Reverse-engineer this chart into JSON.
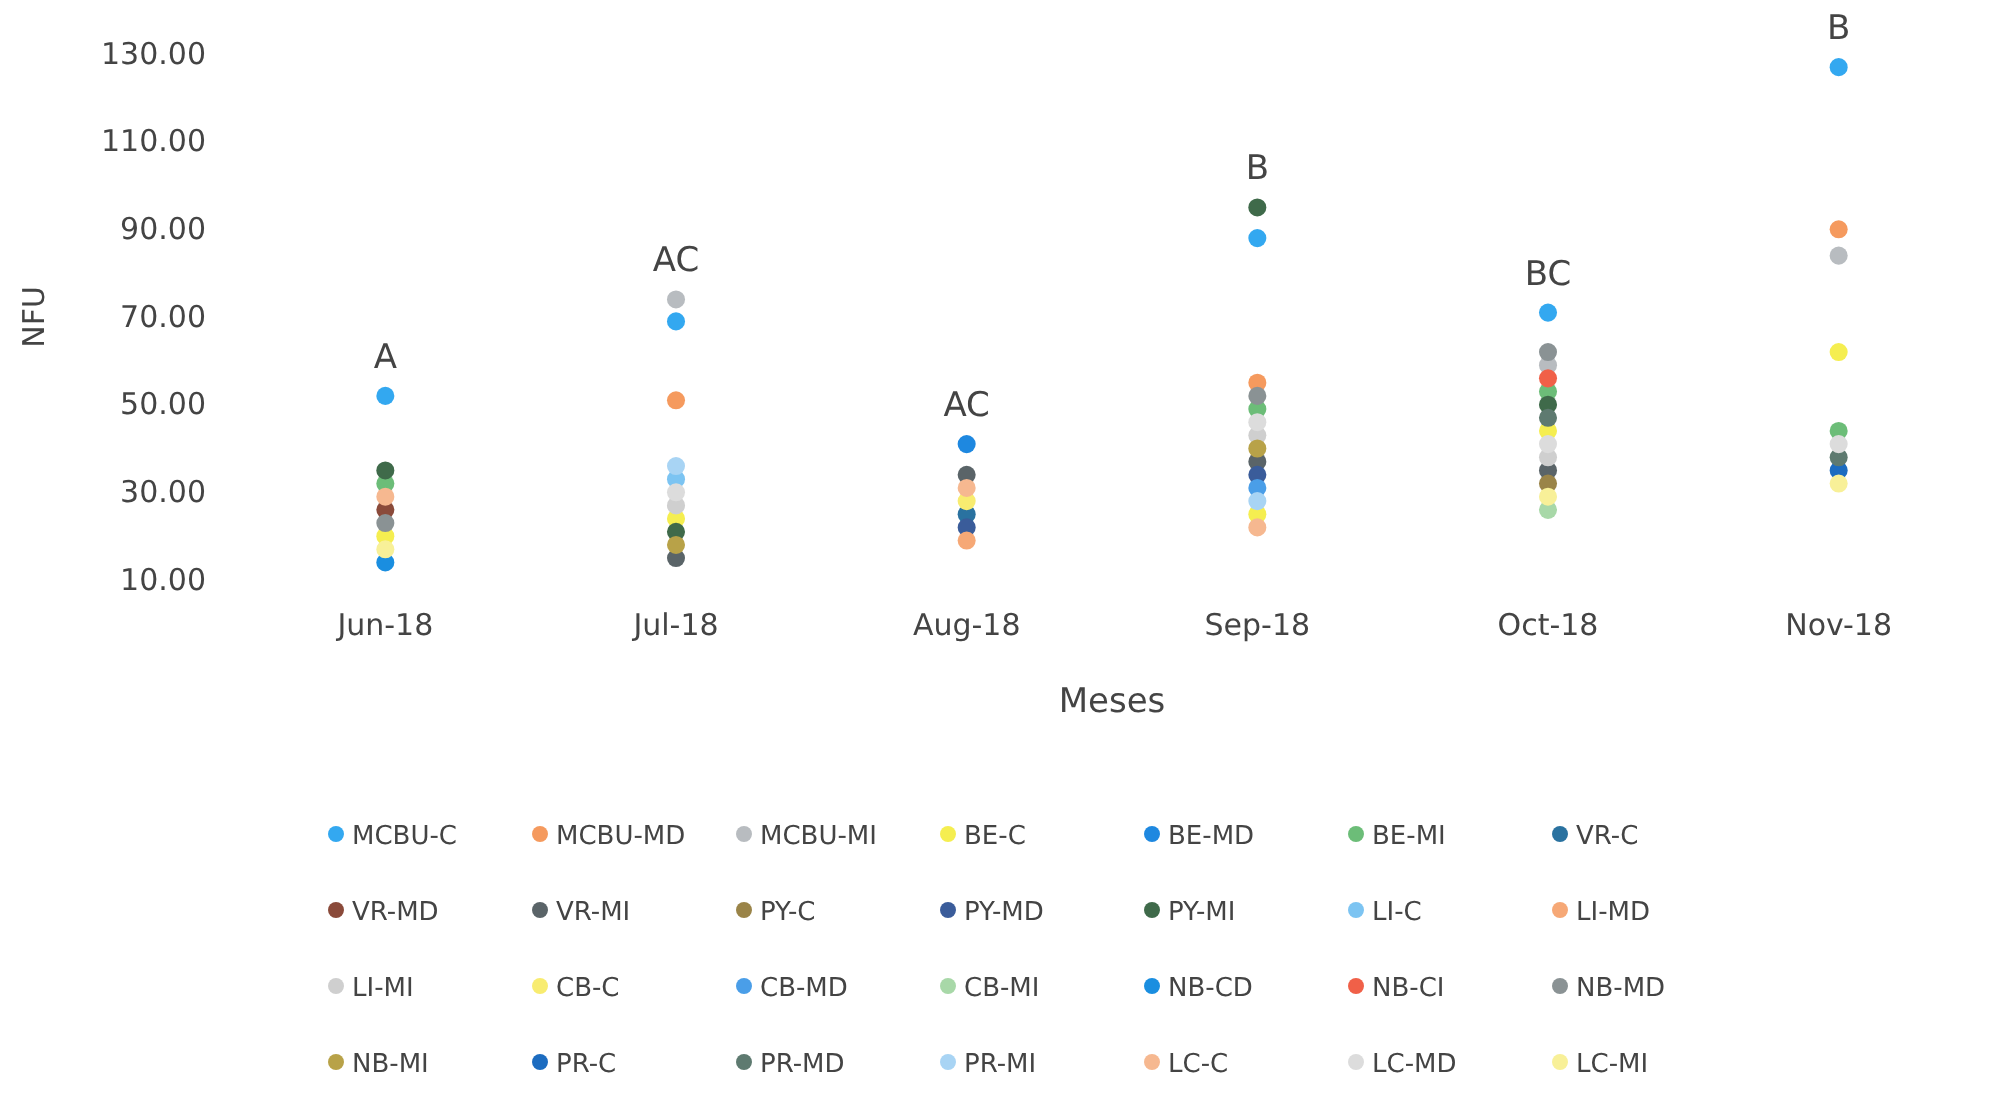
{
  "chart_data": {
    "type": "scatter",
    "xlabel": "Meses",
    "ylabel": "NFU",
    "categories": [
      "Jun-18",
      "Jul-18",
      "Aug-18",
      "Sep-18",
      "Oct-18",
      "Nov-18"
    ],
    "ylim": [
      10,
      130
    ],
    "yticks": [
      {
        "value": 10,
        "label": "10.00"
      },
      {
        "value": 30,
        "label": "30.00"
      },
      {
        "value": 50,
        "label": "50.00"
      },
      {
        "value": 70,
        "label": "70.00"
      },
      {
        "value": 90,
        "label": "90.00"
      },
      {
        "value": 110,
        "label": "110.00"
      },
      {
        "value": 130,
        "label": "130.00"
      }
    ],
    "grid": false,
    "legend": "bottom",
    "marker": "circle",
    "annotations": [
      {
        "text": "A",
        "x": "Jun-18",
        "y": 52
      },
      {
        "text": "AC",
        "x": "Jul-18",
        "y": 74
      },
      {
        "text": "AC",
        "x": "Aug-18",
        "y": 41
      },
      {
        "text": "B",
        "x": "Sep-18",
        "y": 95
      },
      {
        "text": "BC",
        "x": "Oct-18",
        "y": 71
      },
      {
        "text": "B",
        "x": "Nov-18",
        "y": 127
      }
    ],
    "series": [
      {
        "name": "MCBU-C",
        "color": "#33a8f0",
        "values": [
          52,
          69,
          null,
          88,
          71,
          127
        ]
      },
      {
        "name": "MCBU-MD",
        "color": "#f59a5e",
        "values": [
          null,
          51,
          null,
          55,
          null,
          90
        ]
      },
      {
        "name": "MCBU-MI",
        "color": "#b8bcc0",
        "values": [
          null,
          74,
          null,
          null,
          59,
          84
        ]
      },
      {
        "name": "BE-C",
        "color": "#f5ee50",
        "values": [
          20,
          24,
          null,
          25,
          44,
          62
        ]
      },
      {
        "name": "BE-MD",
        "color": "#1e88e0",
        "values": [
          null,
          null,
          41,
          null,
          null,
          null
        ]
      },
      {
        "name": "BE-MI",
        "color": "#6cbd78",
        "values": [
          32,
          null,
          null,
          49,
          53,
          44
        ]
      },
      {
        "name": "VR-C",
        "color": "#2a72a0",
        "values": [
          null,
          null,
          25,
          null,
          null,
          null
        ]
      },
      {
        "name": "VR-MD",
        "color": "#8a4a3a",
        "values": [
          26,
          null,
          null,
          null,
          null,
          null
        ]
      },
      {
        "name": "VR-MI",
        "color": "#5a6468",
        "values": [
          null,
          15,
          34,
          37,
          35,
          null
        ]
      },
      {
        "name": "PY-C",
        "color": "#9a8448",
        "values": [
          null,
          null,
          null,
          null,
          32,
          null
        ]
      },
      {
        "name": "PY-MD",
        "color": "#3a5c9a",
        "values": [
          null,
          null,
          22,
          34,
          null,
          null
        ]
      },
      {
        "name": "PY-MI",
        "color": "#3f6a4a",
        "values": [
          35,
          21,
          null,
          95,
          50,
          null
        ]
      },
      {
        "name": "LI-C",
        "color": "#7cc4f2",
        "values": [
          null,
          33,
          null,
          null,
          null,
          null
        ]
      },
      {
        "name": "LI-MD",
        "color": "#f6a876",
        "values": [
          null,
          null,
          19,
          null,
          null,
          null
        ]
      },
      {
        "name": "LI-MI",
        "color": "#cfcfcf",
        "values": [
          null,
          27,
          null,
          43,
          38,
          null
        ]
      },
      {
        "name": "CB-C",
        "color": "#f8ec70",
        "values": [
          null,
          null,
          28,
          null,
          null,
          null
        ]
      },
      {
        "name": "CB-MD",
        "color": "#4a9ee8",
        "values": [
          null,
          null,
          null,
          31,
          null,
          null
        ]
      },
      {
        "name": "CB-MI",
        "color": "#a8d8a8",
        "values": [
          null,
          null,
          null,
          null,
          26,
          null
        ]
      },
      {
        "name": "NB-CD",
        "color": "#1a8ee0",
        "values": [
          14,
          null,
          null,
          null,
          null,
          null
        ]
      },
      {
        "name": "NB-CI",
        "color": "#f06048",
        "values": [
          null,
          null,
          null,
          null,
          56,
          null
        ]
      },
      {
        "name": "NB-MD",
        "color": "#8a9294",
        "values": [
          23,
          null,
          null,
          52,
          62,
          null
        ]
      },
      {
        "name": "NB-MI",
        "color": "#b8a248",
        "values": [
          null,
          18,
          null,
          40,
          null,
          null
        ]
      },
      {
        "name": "PR-C",
        "color": "#1c6cc0",
        "values": [
          null,
          null,
          null,
          null,
          null,
          35
        ]
      },
      {
        "name": "PR-MD",
        "color": "#5e7a70",
        "values": [
          null,
          null,
          null,
          null,
          47,
          38
        ]
      },
      {
        "name": "PR-MI",
        "color": "#a8d4f4",
        "values": [
          null,
          36,
          null,
          28,
          null,
          null
        ]
      },
      {
        "name": "LC-C",
        "color": "#f6b890",
        "values": [
          29,
          null,
          31,
          22,
          null,
          null
        ]
      },
      {
        "name": "LC-MD",
        "color": "#dcdcdc",
        "values": [
          null,
          30,
          null,
          46,
          41,
          41
        ]
      },
      {
        "name": "LC-MI",
        "color": "#f8f098",
        "values": [
          17,
          null,
          null,
          null,
          29,
          32
        ]
      }
    ]
  }
}
